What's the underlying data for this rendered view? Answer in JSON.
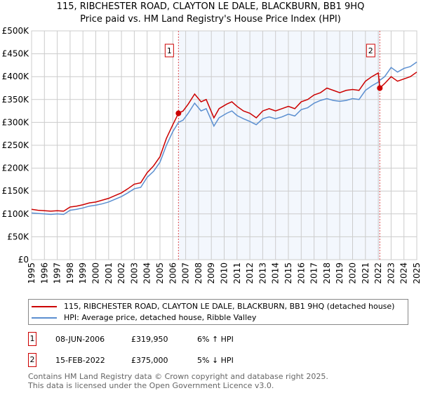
{
  "chart_data": {
    "type": "line",
    "title": "115, RIBCHESTER ROAD, CLAYTON LE DALE, BLACKBURN, BB1 9HQ",
    "subtitle": "Price paid vs. HM Land Registry's House Price Index (HPI)",
    "xlim": [
      1995,
      2025
    ],
    "ylim": [
      0,
      500000
    ],
    "yticks": [
      0,
      50000,
      100000,
      150000,
      200000,
      250000,
      300000,
      350000,
      400000,
      450000,
      500000
    ],
    "ytick_labels": [
      "£0",
      "£50K",
      "£100K",
      "£150K",
      "£200K",
      "£250K",
      "£300K",
      "£350K",
      "£400K",
      "£450K",
      "£500K"
    ],
    "xtick_labels": [
      "1995",
      "1996",
      "1997",
      "1998",
      "1999",
      "2000",
      "2001",
      "2002",
      "2003",
      "2004",
      "2005",
      "2006",
      "2007",
      "2008",
      "2009",
      "2010",
      "2011",
      "2012",
      "2013",
      "2014",
      "2015",
      "2016",
      "2017",
      "2018",
      "2019",
      "2020",
      "2021",
      "2022",
      "2023",
      "2024",
      "2025"
    ],
    "grid": true,
    "shaded_range": [
      2006.44,
      2022.12
    ],
    "series": [
      {
        "name": "115, RIBCHESTER ROAD, CLAYTON LE DALE, BLACKBURN, BB1 9HQ (detached house)",
        "color": "#cc0000",
        "x": [
          1995,
          1995.5,
          1996,
          1996.5,
          1997,
          1997.5,
          1998,
          1998.5,
          1999,
          1999.5,
          2000,
          2000.5,
          2001,
          2001.5,
          2002,
          2002.5,
          2003,
          2003.5,
          2004,
          2004.5,
          2005,
          2005.5,
          2006,
          2006.44,
          2006.8,
          2007.2,
          2007.7,
          2008.2,
          2008.6,
          2009.2,
          2009.6,
          2010.2,
          2010.6,
          2011,
          2011.5,
          2012,
          2012.5,
          2013,
          2013.5,
          2014,
          2014.5,
          2015,
          2015.5,
          2016,
          2016.5,
          2017,
          2017.5,
          2018,
          2018.5,
          2019,
          2019.5,
          2020,
          2020.5,
          2021,
          2021.5,
          2022,
          2022.12,
          2022.5,
          2023,
          2023.5,
          2024,
          2024.5,
          2025
        ],
        "y": [
          110000,
          108000,
          107000,
          106000,
          107000,
          106000,
          115000,
          117000,
          120000,
          124000,
          126000,
          130000,
          134000,
          140000,
          146000,
          155000,
          165000,
          168000,
          190000,
          205000,
          225000,
          265000,
          295000,
          319950,
          325000,
          340000,
          362000,
          345000,
          350000,
          310000,
          330000,
          340000,
          345000,
          335000,
          325000,
          320000,
          310000,
          325000,
          330000,
          325000,
          330000,
          335000,
          330000,
          345000,
          350000,
          360000,
          365000,
          375000,
          370000,
          365000,
          370000,
          372000,
          370000,
          390000,
          400000,
          408000,
          375000,
          385000,
          400000,
          390000,
          395000,
          400000,
          410000
        ]
      },
      {
        "name": "HPI: Average price, detached house, Ribble Valley",
        "color": "#5b8fd0",
        "x": [
          1995,
          1995.5,
          1996,
          1996.5,
          1997,
          1997.5,
          1998,
          1998.5,
          1999,
          1999.5,
          2000,
          2000.5,
          2001,
          2001.5,
          2002,
          2002.5,
          2003,
          2003.5,
          2004,
          2004.5,
          2005,
          2005.5,
          2006,
          2006.44,
          2006.8,
          2007.2,
          2007.7,
          2008.2,
          2008.6,
          2009.2,
          2009.6,
          2010.2,
          2010.6,
          2011,
          2011.5,
          2012,
          2012.5,
          2013,
          2013.5,
          2014,
          2014.5,
          2015,
          2015.5,
          2016,
          2016.5,
          2017,
          2017.5,
          2018,
          2018.5,
          2019,
          2019.5,
          2020,
          2020.5,
          2021,
          2021.5,
          2022,
          2022.12,
          2022.5,
          2023,
          2023.5,
          2024,
          2024.5,
          2025
        ],
        "y": [
          102000,
          101000,
          100000,
          99000,
          100000,
          99000,
          108000,
          110000,
          113000,
          117000,
          119000,
          122000,
          126000,
          132000,
          138000,
          146000,
          155000,
          158000,
          180000,
          193000,
          213000,
          250000,
          280000,
          300000,
          305000,
          320000,
          342000,
          325000,
          330000,
          292000,
          310000,
          320000,
          325000,
          315000,
          308000,
          302000,
          295000,
          308000,
          312000,
          308000,
          312000,
          318000,
          314000,
          328000,
          332000,
          342000,
          348000,
          352000,
          348000,
          346000,
          348000,
          352000,
          350000,
          370000,
          380000,
          388000,
          392000,
          400000,
          420000,
          410000,
          418000,
          422000,
          432000
        ]
      }
    ],
    "annotations": [
      {
        "label": "1",
        "x": 2006.44,
        "y": 319950
      },
      {
        "label": "2",
        "x": 2022.12,
        "y": 375000
      }
    ]
  },
  "legend": {
    "items": [
      {
        "label": "115, RIBCHESTER ROAD, CLAYTON LE DALE, BLACKBURN, BB1 9HQ (detached house)",
        "color": "#cc0000"
      },
      {
        "label": "HPI: Average price, detached house, Ribble Valley",
        "color": "#5b8fd0"
      }
    ]
  },
  "sales": [
    {
      "num": "1",
      "date": "08-JUN-2006",
      "price": "£319,950",
      "hpi": "6% ↑ HPI"
    },
    {
      "num": "2",
      "date": "15-FEB-2022",
      "price": "£375,000",
      "hpi": "5% ↓ HPI"
    }
  ],
  "footer": {
    "line1": "Contains HM Land Registry data © Crown copyright and database right 2025.",
    "line2": "This data is licensed under the Open Government Licence v3.0."
  }
}
